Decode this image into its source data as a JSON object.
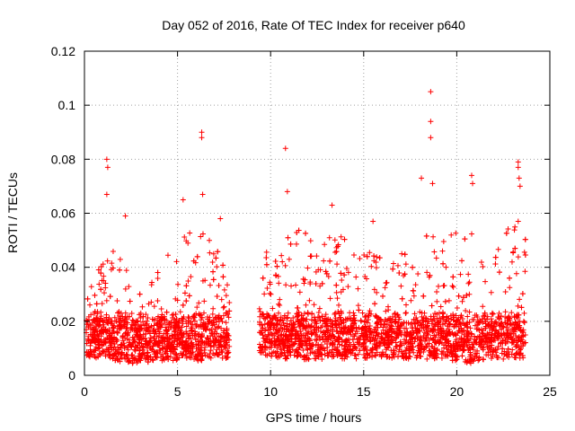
{
  "chart_data": {
    "type": "scatter",
    "title": "Day 052 of 2016, Rate Of TEC Index for receiver p640",
    "xlabel": "GPS time / hours",
    "ylabel": "ROTI / TECUs",
    "xlim": [
      0,
      25
    ],
    "ylim": [
      0,
      0.12
    ],
    "xticks": [
      0,
      5,
      10,
      15,
      20,
      25
    ],
    "xtick_labels": [
      "0",
      "5",
      "10",
      "15",
      "20",
      "25"
    ],
    "yticks": [
      0,
      0.02,
      0.04,
      0.06,
      0.08,
      0.1,
      0.12
    ],
    "ytick_labels": [
      "0",
      "0.02",
      "0.04",
      "0.06",
      "0.08",
      "0.1",
      "0.12"
    ],
    "grid": true,
    "marker": "+",
    "marker_color": "#ff0000",
    "data_gap_hours": [
      7.8,
      9.4
    ],
    "series": [
      {
        "name": "ROTI",
        "notable_points": [
          {
            "x": 1.2,
            "y": 0.08
          },
          {
            "x": 1.25,
            "y": 0.077
          },
          {
            "x": 1.2,
            "y": 0.067
          },
          {
            "x": 2.2,
            "y": 0.059
          },
          {
            "x": 5.3,
            "y": 0.065
          },
          {
            "x": 6.3,
            "y": 0.09
          },
          {
            "x": 6.3,
            "y": 0.088
          },
          {
            "x": 6.35,
            "y": 0.067
          },
          {
            "x": 7.3,
            "y": 0.058
          },
          {
            "x": 10.8,
            "y": 0.084
          },
          {
            "x": 10.9,
            "y": 0.068
          },
          {
            "x": 13.3,
            "y": 0.063
          },
          {
            "x": 15.5,
            "y": 0.057
          },
          {
            "x": 18.1,
            "y": 0.073
          },
          {
            "x": 18.6,
            "y": 0.105
          },
          {
            "x": 18.6,
            "y": 0.094
          },
          {
            "x": 18.6,
            "y": 0.088
          },
          {
            "x": 18.7,
            "y": 0.071
          },
          {
            "x": 20.8,
            "y": 0.074
          },
          {
            "x": 20.85,
            "y": 0.071
          },
          {
            "x": 23.3,
            "y": 0.079
          },
          {
            "x": 23.3,
            "y": 0.077
          },
          {
            "x": 23.35,
            "y": 0.073
          },
          {
            "x": 23.4,
            "y": 0.07
          },
          {
            "x": 23.3,
            "y": 0.057
          }
        ],
        "envelope": [
          {
            "x": 0.1,
            "low": 0.007,
            "high": 0.028
          },
          {
            "x": 1.0,
            "low": 0.006,
            "high": 0.045
          },
          {
            "x": 2.0,
            "low": 0.005,
            "high": 0.05
          },
          {
            "x": 3.0,
            "low": 0.004,
            "high": 0.03
          },
          {
            "x": 4.0,
            "low": 0.005,
            "high": 0.042
          },
          {
            "x": 5.0,
            "low": 0.005,
            "high": 0.05
          },
          {
            "x": 6.0,
            "low": 0.005,
            "high": 0.055
          },
          {
            "x": 7.0,
            "low": 0.006,
            "high": 0.05
          },
          {
            "x": 7.7,
            "low": 0.006,
            "high": 0.04
          },
          {
            "x": 9.5,
            "low": 0.007,
            "high": 0.045
          },
          {
            "x": 10.5,
            "low": 0.006,
            "high": 0.055
          },
          {
            "x": 11.5,
            "low": 0.006,
            "high": 0.055
          },
          {
            "x": 12.5,
            "low": 0.005,
            "high": 0.06
          },
          {
            "x": 13.5,
            "low": 0.006,
            "high": 0.058
          },
          {
            "x": 14.5,
            "low": 0.006,
            "high": 0.045
          },
          {
            "x": 15.5,
            "low": 0.006,
            "high": 0.05
          },
          {
            "x": 16.5,
            "low": 0.006,
            "high": 0.045
          },
          {
            "x": 17.5,
            "low": 0.006,
            "high": 0.048
          },
          {
            "x": 18.5,
            "low": 0.006,
            "high": 0.06
          },
          {
            "x": 19.5,
            "low": 0.006,
            "high": 0.05
          },
          {
            "x": 20.5,
            "low": 0.004,
            "high": 0.06
          },
          {
            "x": 21.5,
            "low": 0.006,
            "high": 0.048
          },
          {
            "x": 22.5,
            "low": 0.006,
            "high": 0.055
          },
          {
            "x": 23.7,
            "low": 0.006,
            "high": 0.055
          }
        ]
      }
    ]
  }
}
